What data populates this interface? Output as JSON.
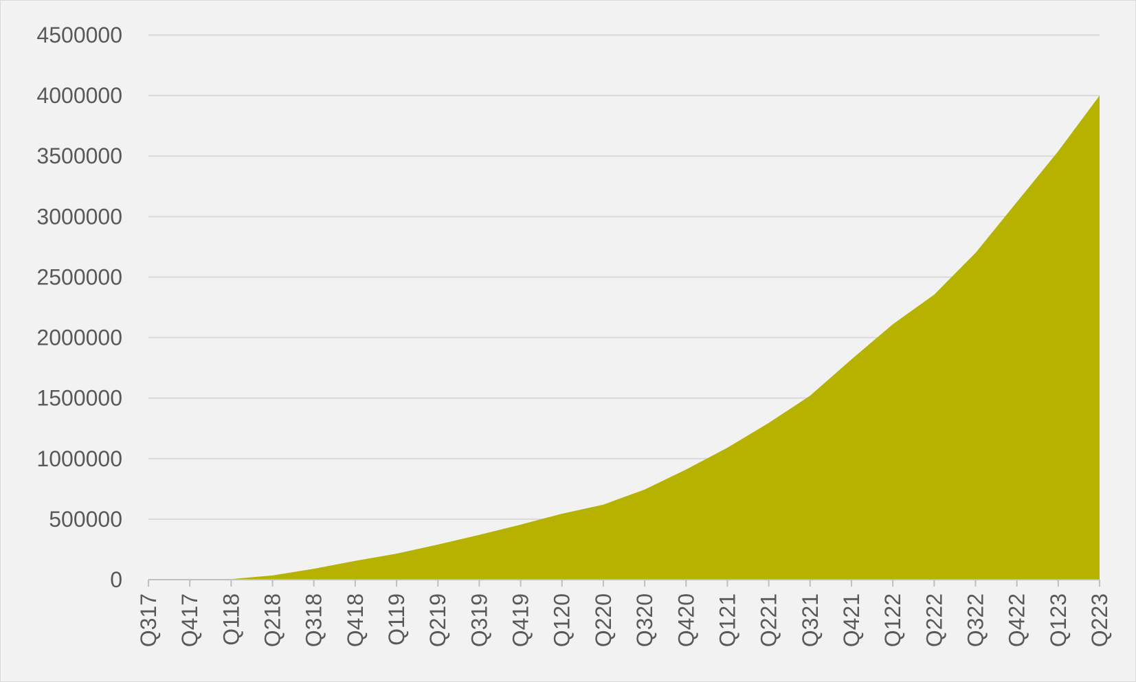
{
  "chart_data": {
    "type": "area",
    "title": "",
    "xlabel": "",
    "ylabel": "",
    "legend": "none",
    "grid": true,
    "colors": {
      "fill": "#b5b300",
      "grid": "#d9d9d9",
      "axis": "#bfbfbf",
      "text": "#595959",
      "background": "#f2f2f2"
    },
    "ylim": [
      0,
      4500000
    ],
    "yticks": [
      0,
      500000,
      1000000,
      1500000,
      2000000,
      2500000,
      3000000,
      3500000,
      4000000,
      4500000
    ],
    "ytick_labels": [
      "0",
      "500000",
      "1000000",
      "1500000",
      "2000000",
      "2500000",
      "3000000",
      "3500000",
      "4000000",
      "4500000"
    ],
    "categories": [
      "Q317",
      "Q417",
      "Q118",
      "Q218",
      "Q318",
      "Q418",
      "Q119",
      "Q219",
      "Q319",
      "Q419",
      "Q120",
      "Q220",
      "Q320",
      "Q420",
      "Q121",
      "Q221",
      "Q321",
      "Q421",
      "Q122",
      "Q222",
      "Q322",
      "Q422",
      "Q123",
      "Q223"
    ],
    "series": [
      {
        "values": [
          0,
          0,
          5000,
          35000,
          90000,
          155000,
          215000,
          290000,
          370000,
          455000,
          545000,
          620000,
          745000,
          910000,
          1090000,
          1295000,
          1520000,
          1820000,
          2110000,
          2355000,
          2700000,
          3120000,
          3540000,
          4000000
        ]
      }
    ]
  }
}
